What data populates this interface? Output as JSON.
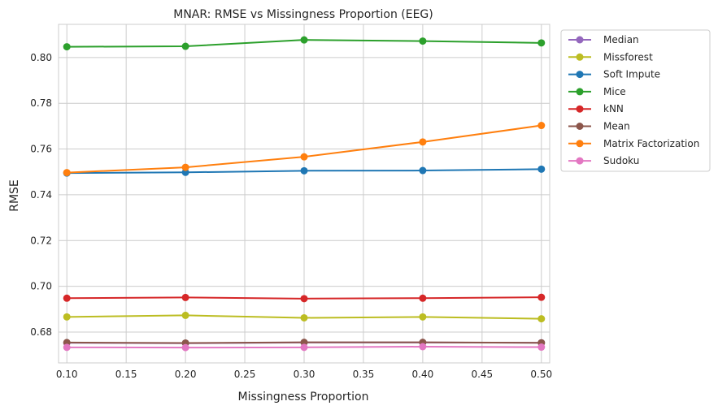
{
  "chart_data": {
    "type": "line",
    "title": "MNAR: RMSE vs Missingness Proportion (EEG)",
    "xlabel": "Missingness Proportion",
    "ylabel": "RMSE",
    "xlim": [
      0.093,
      0.507
    ],
    "ylim": [
      0.6665,
      0.8145
    ],
    "xticks": [
      0.1,
      0.15,
      0.2,
      0.25,
      0.3,
      0.35,
      0.4,
      0.45,
      0.5
    ],
    "xtick_labels": [
      "0.10",
      "0.15",
      "0.20",
      "0.25",
      "0.30",
      "0.35",
      "0.40",
      "0.45",
      "0.50"
    ],
    "yticks": [
      0.68,
      0.7,
      0.72,
      0.74,
      0.76,
      0.78,
      0.8
    ],
    "ytick_labels": [
      "0.68",
      "0.70",
      "0.72",
      "0.74",
      "0.76",
      "0.78",
      "0.80"
    ],
    "grid": true,
    "legend_position": "outside-top-right",
    "x": [
      0.1,
      0.2,
      0.3,
      0.4,
      0.5
    ],
    "series": [
      {
        "name": "Median",
        "color": "#9467bd",
        "values": [
          0.6753,
          0.6751,
          0.6754,
          0.6754,
          0.6753
        ]
      },
      {
        "name": "Missforest",
        "color": "#bcbd22",
        "values": [
          0.6866,
          0.6873,
          0.6862,
          0.6866,
          0.6858
        ]
      },
      {
        "name": "Soft Impute",
        "color": "#1f77b4",
        "values": [
          0.7495,
          0.7498,
          0.7505,
          0.7506,
          0.7512
        ]
      },
      {
        "name": "Mice",
        "color": "#2ca02c",
        "values": [
          0.8047,
          0.8049,
          0.8077,
          0.8072,
          0.8064
        ]
      },
      {
        "name": "kNN",
        "color": "#d62728",
        "values": [
          0.6948,
          0.6951,
          0.6946,
          0.6948,
          0.6952
        ]
      },
      {
        "name": "Mean",
        "color": "#8c564b",
        "values": [
          0.6754,
          0.6752,
          0.6755,
          0.6755,
          0.6753
        ]
      },
      {
        "name": "Matrix Factorization",
        "color": "#ff7f0e",
        "values": [
          0.7497,
          0.752,
          0.7566,
          0.7631,
          0.7703
        ]
      },
      {
        "name": "Sudoku",
        "color": "#e377c2",
        "values": [
          0.6733,
          0.6732,
          0.6733,
          0.6736,
          0.6734
        ]
      }
    ]
  }
}
